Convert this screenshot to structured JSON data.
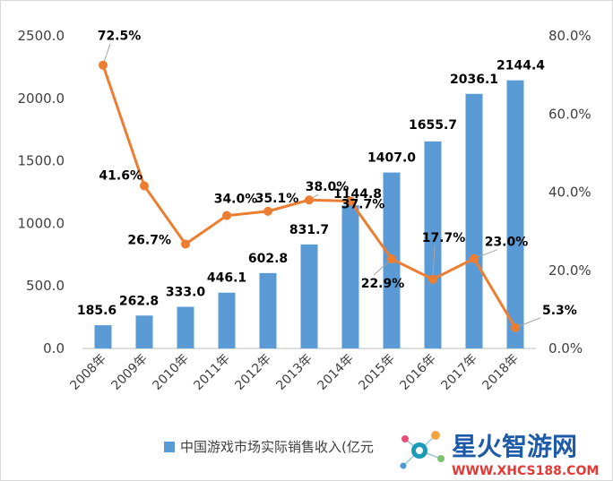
{
  "chart_data": {
    "type": "bar",
    "categories": [
      "2008年",
      "2009年",
      "2010年",
      "2011年",
      "2012年",
      "2013年",
      "2014年",
      "2015年",
      "2016年",
      "2017年",
      "2018年"
    ],
    "series": [
      {
        "name": "中国游戏市场实际销售收入(亿元",
        "type": "bar",
        "axis": "left",
        "values": [
          185.6,
          262.8,
          333.0,
          446.1,
          602.8,
          831.7,
          1144.8,
          1407.0,
          1655.7,
          2036.1,
          2144.4
        ],
        "labels": [
          "185.6",
          "262.8",
          "333.0",
          "446.1",
          "602.8",
          "831.7",
          "1144.8",
          "1407.0",
          "1655.7",
          "2036.1",
          "2144.4"
        ],
        "color": "#5b9bd5"
      },
      {
        "type": "line",
        "axis": "right",
        "values": [
          72.5,
          41.6,
          26.7,
          34.0,
          35.1,
          38.0,
          37.7,
          22.9,
          17.7,
          23.0,
          5.3
        ],
        "labels": [
          "72.5%",
          "41.6%",
          "26.7%",
          "34.0%",
          "35.1%",
          "38.0%",
          "37.7%",
          "22.9%",
          "17.7%",
          "23.0%",
          "5.3%"
        ],
        "color": "#ed7d31"
      }
    ],
    "y_left": {
      "ticks": [
        "0.0",
        "500.0",
        "1000.0",
        "1500.0",
        "2000.0",
        "2500.0"
      ],
      "range": [
        0,
        2500
      ]
    },
    "y_right": {
      "ticks": [
        "0.0%",
        "20.0%",
        "40.0%",
        "60.0%",
        "80.0%"
      ],
      "range": [
        0,
        80
      ]
    },
    "grid": false,
    "legend_position": "bottom"
  },
  "watermark": {
    "title": "星火智游网",
    "url": "WWW.XHCS188.COM"
  }
}
